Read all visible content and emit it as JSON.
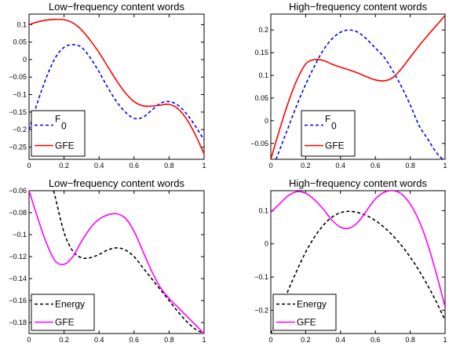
{
  "chart_data": [
    {
      "type": "line",
      "title": "Low−frequency content words",
      "xlim": [
        0,
        1
      ],
      "ylim": [
        -0.285,
        0.13
      ],
      "xticks": [
        0,
        0.2,
        0.4,
        0.6,
        0.8,
        1
      ],
      "xtick_labels": [
        "0",
        "0.2",
        "0.4",
        "0.6",
        "0.8",
        "1"
      ],
      "yticks": [
        0.1,
        0.05,
        0,
        -0.05,
        -0.1,
        -0.15,
        -0.2,
        -0.25
      ],
      "ytick_labels": [
        "0.1",
        "0.05",
        "0",
        "−0.05",
        "−0.1",
        "−0.15",
        "−0.2",
        "−0.25"
      ],
      "legend_position": "bottom-left",
      "series": [
        {
          "name": "F0",
          "legend_main": "F",
          "legend_sub": "0",
          "color": "#0000ff",
          "style": "dashed",
          "x": [
            0,
            0.05,
            0.1,
            0.15,
            0.2,
            0.25,
            0.3,
            0.35,
            0.4,
            0.45,
            0.5,
            0.55,
            0.6,
            0.65,
            0.7,
            0.75,
            0.8,
            0.85,
            0.9,
            0.95,
            1
          ],
          "y": [
            -0.2,
            -0.12,
            -0.05,
            0.005,
            0.035,
            0.043,
            0.035,
            0.005,
            -0.035,
            -0.08,
            -0.12,
            -0.15,
            -0.168,
            -0.165,
            -0.145,
            -0.125,
            -0.12,
            -0.13,
            -0.155,
            -0.19,
            -0.23
          ]
        },
        {
          "name": "GFE",
          "color": "#ff0000",
          "style": "solid",
          "x": [
            0,
            0.05,
            0.1,
            0.15,
            0.2,
            0.25,
            0.3,
            0.35,
            0.4,
            0.45,
            0.5,
            0.55,
            0.6,
            0.65,
            0.7,
            0.75,
            0.8,
            0.85,
            0.9,
            0.95,
            1
          ],
          "y": [
            0.1,
            0.108,
            0.113,
            0.115,
            0.114,
            0.105,
            0.085,
            0.055,
            0.02,
            -0.02,
            -0.06,
            -0.095,
            -0.12,
            -0.132,
            -0.133,
            -0.13,
            -0.128,
            -0.14,
            -0.17,
            -0.215,
            -0.27
          ]
        }
      ]
    },
    {
      "type": "line",
      "title": "High−frequency content words",
      "xlim": [
        0,
        1
      ],
      "ylim": [
        -0.085,
        0.235
      ],
      "xticks": [
        0,
        0.2,
        0.4,
        0.6,
        0.8,
        1
      ],
      "xtick_labels": [
        "0",
        "0.2",
        "0.4",
        "0.6",
        "0.8",
        "1"
      ],
      "yticks": [
        0.2,
        0.15,
        0.1,
        0.05,
        0,
        -0.05
      ],
      "ytick_labels": [
        "0.2",
        "0.15",
        "0.1",
        "0.05",
        "0",
        "−0.05"
      ],
      "legend_position": "bottom-center",
      "series": [
        {
          "name": "F0",
          "legend_main": "F",
          "legend_sub": "0",
          "color": "#0000ff",
          "style": "dashed",
          "x": [
            0.03,
            0.05,
            0.1,
            0.15,
            0.2,
            0.25,
            0.3,
            0.35,
            0.4,
            0.45,
            0.5,
            0.55,
            0.6,
            0.65,
            0.7,
            0.75,
            0.8,
            0.85,
            0.9,
            0.95,
            1
          ],
          "y": [
            -0.085,
            -0.065,
            -0.015,
            0.035,
            0.08,
            0.12,
            0.155,
            0.18,
            0.195,
            0.2,
            0.195,
            0.18,
            0.16,
            0.14,
            0.11,
            0.075,
            0.035,
            -0.01,
            -0.04,
            -0.07,
            -0.09
          ]
        },
        {
          "name": "GFE",
          "color": "#ff0000",
          "style": "solid",
          "x": [
            0,
            0.05,
            0.1,
            0.15,
            0.2,
            0.25,
            0.3,
            0.35,
            0.4,
            0.45,
            0.5,
            0.55,
            0.6,
            0.65,
            0.7,
            0.75,
            0.8,
            0.85,
            0.9,
            0.95,
            1
          ],
          "y": [
            -0.085,
            -0.02,
            0.04,
            0.09,
            0.125,
            0.135,
            0.133,
            0.125,
            0.118,
            0.112,
            0.105,
            0.097,
            0.09,
            0.088,
            0.095,
            0.115,
            0.14,
            0.165,
            0.188,
            0.21,
            0.232
          ]
        }
      ]
    },
    {
      "type": "line",
      "title": "Low−frequency content words",
      "xlim": [
        0,
        1
      ],
      "ylim": [
        -0.19,
        -0.06
      ],
      "xticks": [
        0,
        0.2,
        0.4,
        0.6,
        0.8,
        1
      ],
      "xtick_labels": [
        "0",
        "0.2",
        "0.4",
        "0.6",
        "0.8",
        "1"
      ],
      "yticks": [
        -0.06,
        -0.08,
        -0.1,
        -0.12,
        -0.14,
        -0.16,
        -0.18
      ],
      "ytick_labels": [
        "−0.06",
        "−0.08",
        "−0.1",
        "−0.12",
        "−0.14",
        "−0.16",
        "−0.18"
      ],
      "legend_position": "bottom-left",
      "series": [
        {
          "name": "Energy",
          "legend_main": "Energy",
          "color": "#000000",
          "style": "dashed",
          "x": [
            0.14,
            0.15,
            0.2,
            0.25,
            0.3,
            0.35,
            0.4,
            0.45,
            0.5,
            0.55,
            0.6,
            0.65,
            0.7,
            0.75,
            0.8,
            0.85,
            0.9,
            0.95,
            1
          ],
          "y": [
            -0.06,
            -0.066,
            -0.098,
            -0.115,
            -0.121,
            -0.121,
            -0.118,
            -0.114,
            -0.112,
            -0.114,
            -0.12,
            -0.13,
            -0.14,
            -0.15,
            -0.16,
            -0.17,
            -0.179,
            -0.186,
            -0.19
          ]
        },
        {
          "name": "GFE",
          "color": "#ff00ff",
          "style": "solid",
          "x": [
            0,
            0.05,
            0.1,
            0.15,
            0.2,
            0.25,
            0.3,
            0.35,
            0.4,
            0.45,
            0.5,
            0.55,
            0.6,
            0.65,
            0.7,
            0.75,
            0.8,
            0.85,
            0.9,
            0.95,
            1
          ],
          "y": [
            -0.06,
            -0.085,
            -0.108,
            -0.124,
            -0.127,
            -0.12,
            -0.106,
            -0.094,
            -0.086,
            -0.082,
            -0.081,
            -0.085,
            -0.097,
            -0.115,
            -0.133,
            -0.148,
            -0.158,
            -0.166,
            -0.174,
            -0.182,
            -0.19
          ]
        }
      ]
    },
    {
      "type": "line",
      "title": "High−frequency content words",
      "xlim": [
        0,
        1
      ],
      "ylim": [
        -0.27,
        0.16
      ],
      "xticks": [
        0,
        0.2,
        0.4,
        0.6,
        0.8,
        1
      ],
      "xtick_labels": [
        "0",
        "0.2",
        "0.4",
        "0.6",
        "0.8",
        "1"
      ],
      "yticks": [
        0.1,
        0,
        -0.1,
        -0.2
      ],
      "ytick_labels": [
        "0.1",
        "0",
        "−0.1",
        "−0.2"
      ],
      "legend_position": "bottom-left",
      "series": [
        {
          "name": "Energy",
          "legend_main": "Energy",
          "color": "#000000",
          "style": "dashed",
          "x": [
            0,
            0.05,
            0.1,
            0.15,
            0.2,
            0.25,
            0.3,
            0.35,
            0.4,
            0.45,
            0.5,
            0.55,
            0.6,
            0.65,
            0.7,
            0.75,
            0.8,
            0.85,
            0.9,
            0.95,
            1
          ],
          "y": [
            -0.27,
            -0.205,
            -0.14,
            -0.08,
            -0.025,
            0.02,
            0.055,
            0.08,
            0.094,
            0.098,
            0.094,
            0.085,
            0.07,
            0.05,
            0.025,
            -0.005,
            -0.04,
            -0.08,
            -0.125,
            -0.175,
            -0.23
          ]
        },
        {
          "name": "GFE",
          "color": "#ff00ff",
          "style": "solid",
          "x": [
            0,
            0.05,
            0.1,
            0.15,
            0.2,
            0.25,
            0.3,
            0.35,
            0.4,
            0.45,
            0.5,
            0.55,
            0.6,
            0.65,
            0.7,
            0.75,
            0.8,
            0.85,
            0.9,
            0.95,
            1
          ],
          "y": [
            0.095,
            0.12,
            0.145,
            0.157,
            0.152,
            0.133,
            0.105,
            0.072,
            0.05,
            0.047,
            0.065,
            0.1,
            0.135,
            0.155,
            0.16,
            0.15,
            0.12,
            0.07,
            0.0,
            -0.09,
            -0.19
          ]
        }
      ]
    }
  ]
}
